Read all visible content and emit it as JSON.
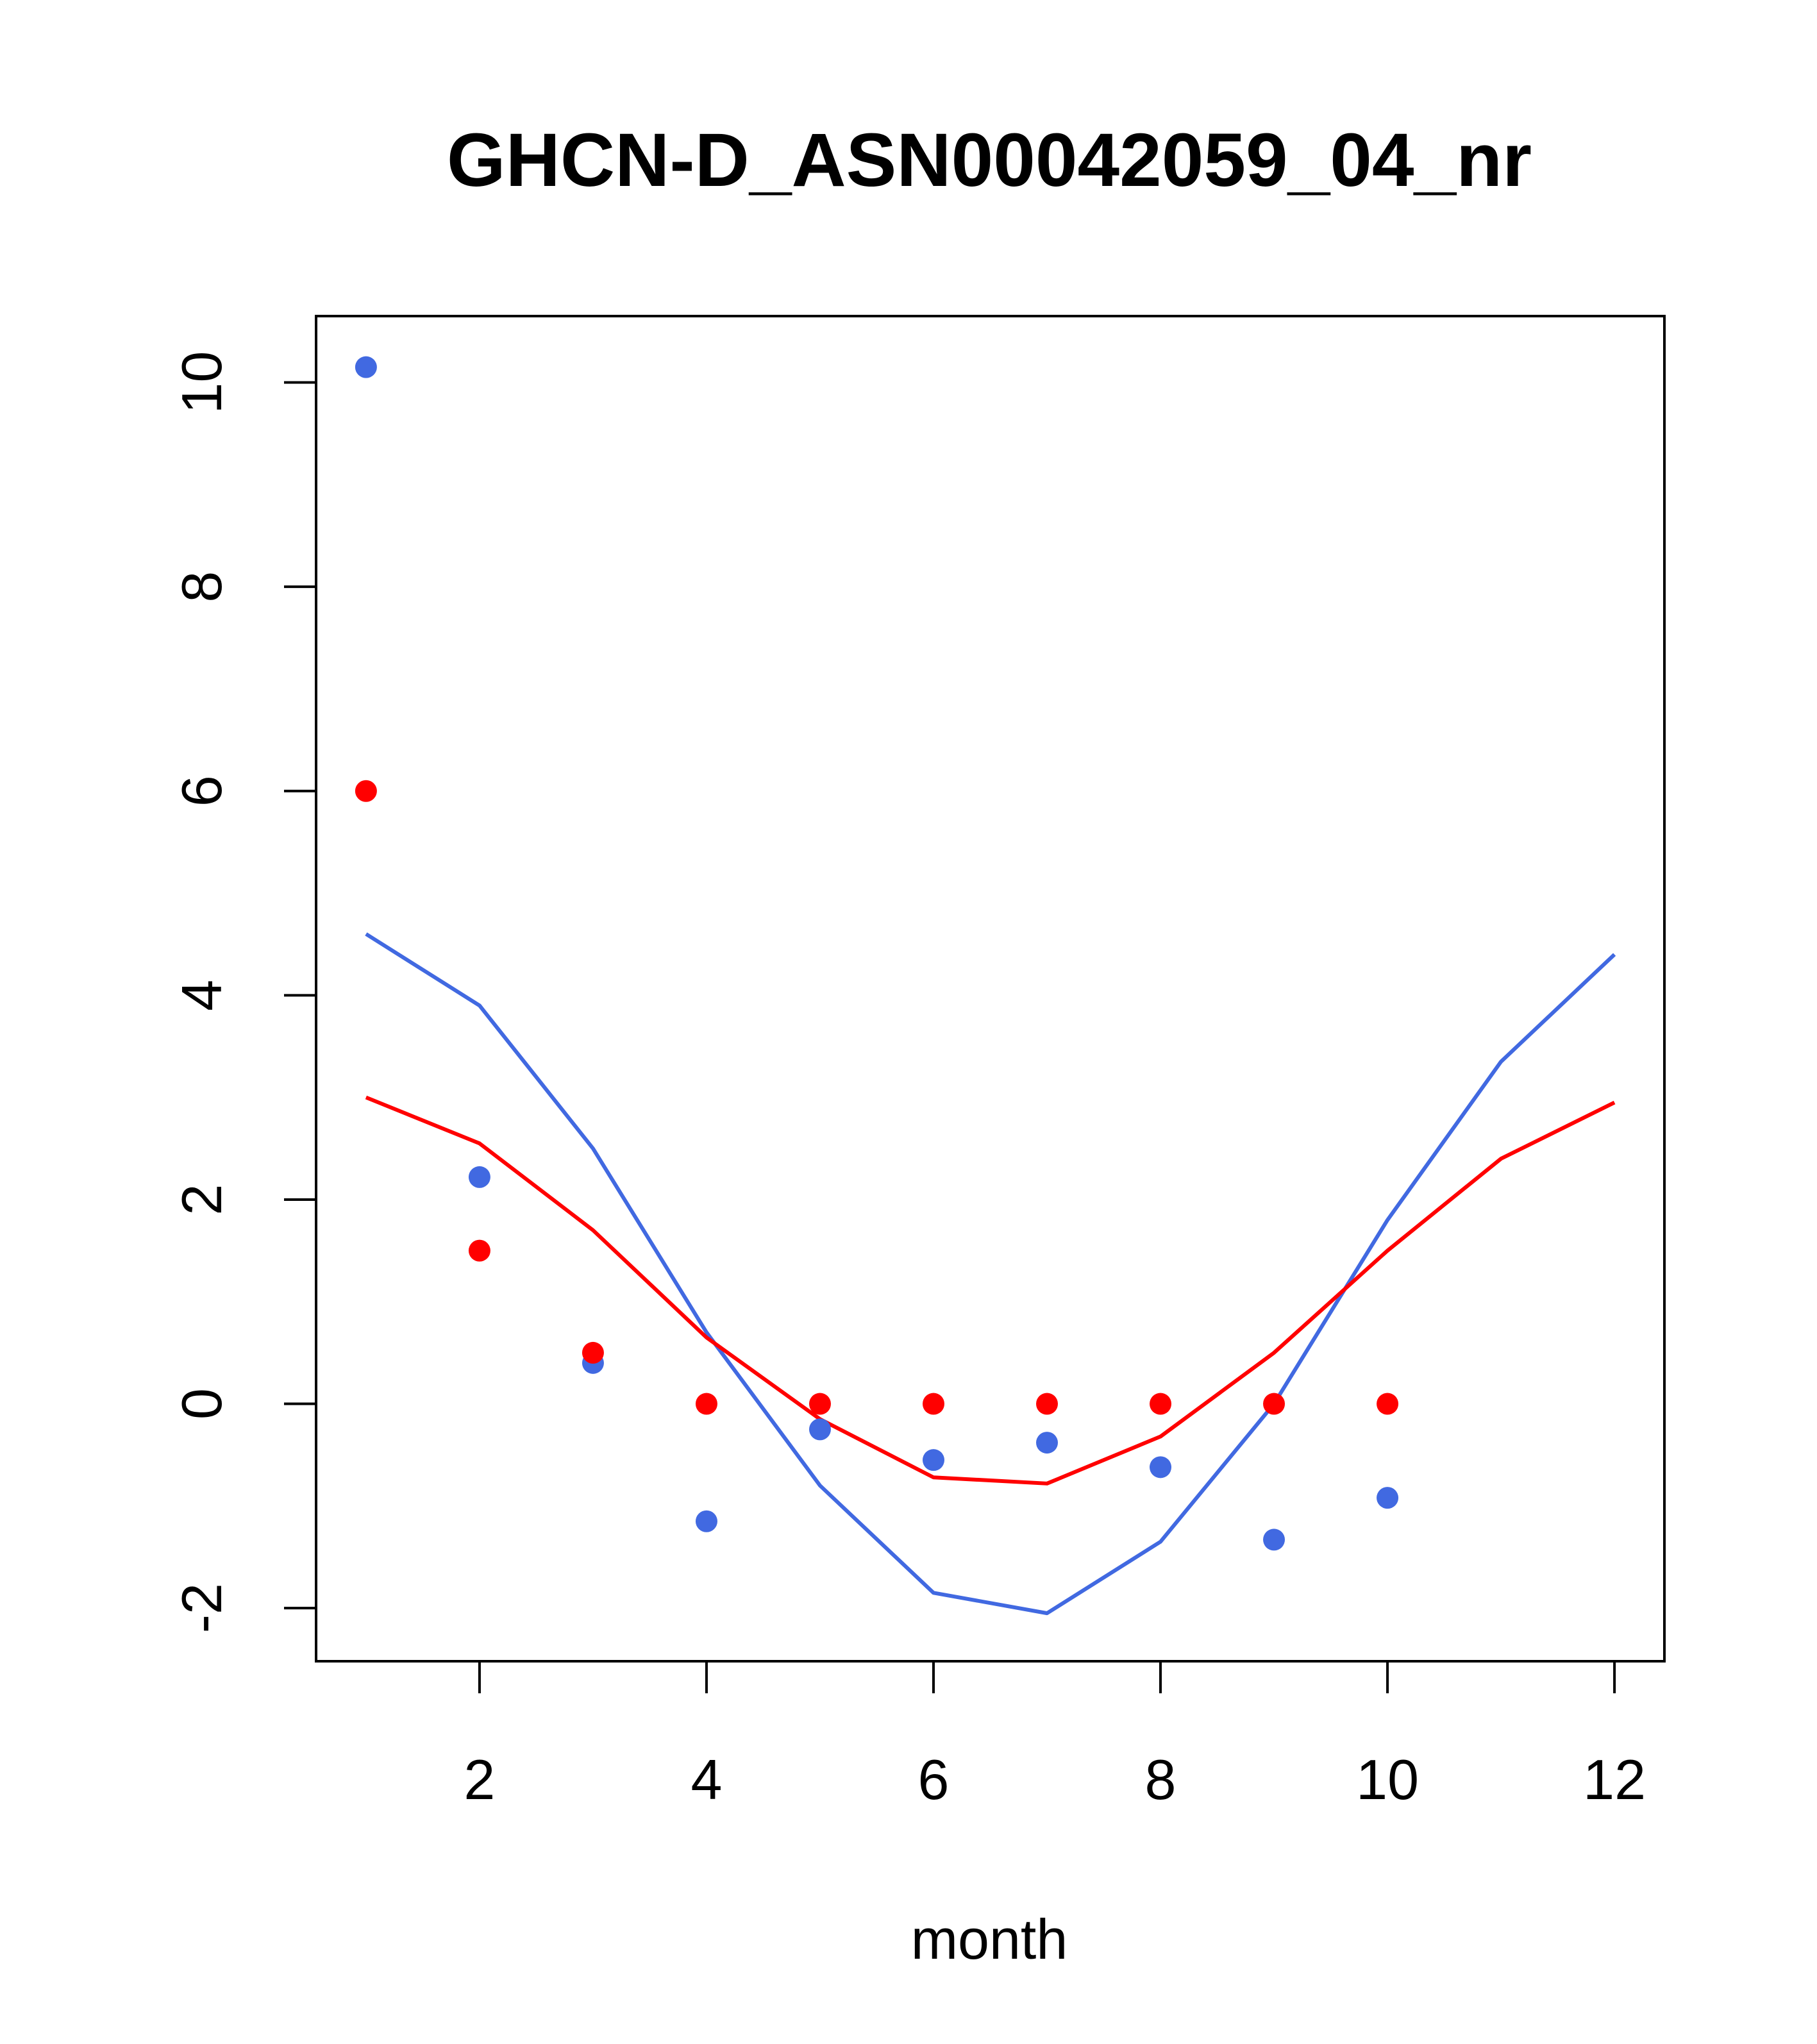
{
  "chart_data": {
    "type": "scatter",
    "title": "GHCN-D_ASN00042059_04_nr",
    "xlabel": "month",
    "ylabel": "",
    "xlim": [
      0.56,
      12.44
    ],
    "ylim": [
      -2.52,
      10.65
    ],
    "xticks": [
      2,
      4,
      6,
      8,
      10,
      12
    ],
    "yticks": [
      -2,
      0,
      2,
      4,
      6,
      8,
      10
    ],
    "grid": false,
    "series": [
      {
        "kind": "points",
        "color": "#4169E1",
        "x": [
          1,
          2,
          3,
          4,
          5,
          6,
          7,
          8,
          9,
          10
        ],
        "y": [
          10.15,
          2.22,
          0.4,
          -1.15,
          -0.25,
          -0.55,
          -0.38,
          -0.62,
          -1.33,
          -0.92
        ]
      },
      {
        "kind": "points",
        "color": "#FF0000",
        "x": [
          1,
          2,
          3,
          4,
          5,
          6,
          7,
          8,
          9,
          10
        ],
        "y": [
          6.0,
          1.5,
          0.5,
          0.0,
          0.0,
          0.0,
          0.0,
          0.0,
          0.0,
          0.0
        ]
      },
      {
        "kind": "line",
        "color": "#4169E1",
        "x": [
          1,
          2,
          3,
          4,
          5,
          6,
          7,
          8,
          9,
          10,
          11,
          12
        ],
        "y": [
          4.6,
          3.9,
          2.5,
          0.7,
          -0.8,
          -1.85,
          -2.05,
          -1.35,
          0.0,
          1.8,
          3.35,
          4.4
        ]
      },
      {
        "kind": "line",
        "color": "#FF0000",
        "x": [
          1,
          2,
          3,
          4,
          5,
          6,
          7,
          8,
          9,
          10,
          11,
          12
        ],
        "y": [
          3.0,
          2.55,
          1.7,
          0.65,
          -0.15,
          -0.72,
          -0.78,
          -0.32,
          0.5,
          1.5,
          2.4,
          2.95
        ]
      }
    ]
  }
}
